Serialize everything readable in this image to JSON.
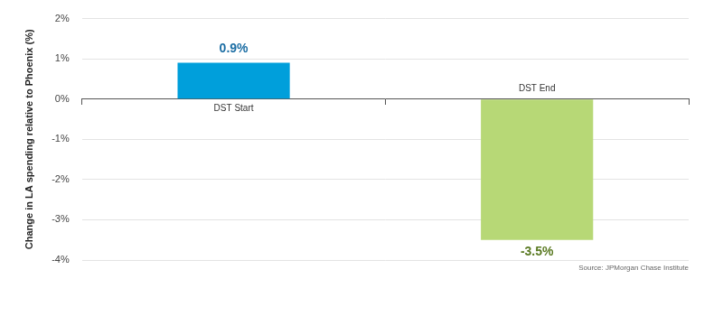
{
  "chart_data": {
    "type": "bar",
    "y_label": "Change in LA spending relative to Phoenix (%)",
    "categories": [
      "DST Start",
      "DST End"
    ],
    "values": [
      0.9,
      -3.5
    ],
    "value_labels": [
      "0.9%",
      "-3.5%"
    ],
    "colors": [
      "#009fdb",
      "#b7d876"
    ],
    "data_labels": true,
    "ylim": [
      -4,
      2
    ],
    "yticks": [
      {
        "value": -4,
        "label": "-4%"
      },
      {
        "value": -3,
        "label": "-3%"
      },
      {
        "value": -2,
        "label": "-2%"
      },
      {
        "value": -1,
        "label": "-1%"
      },
      {
        "value": 0,
        "label": "0%"
      },
      {
        "value": 1,
        "label": "1%"
      },
      {
        "value": 2,
        "label": "2%"
      }
    ],
    "grid": true,
    "annotations": [
      "Source: JPMorgan Chase Institute"
    ]
  }
}
